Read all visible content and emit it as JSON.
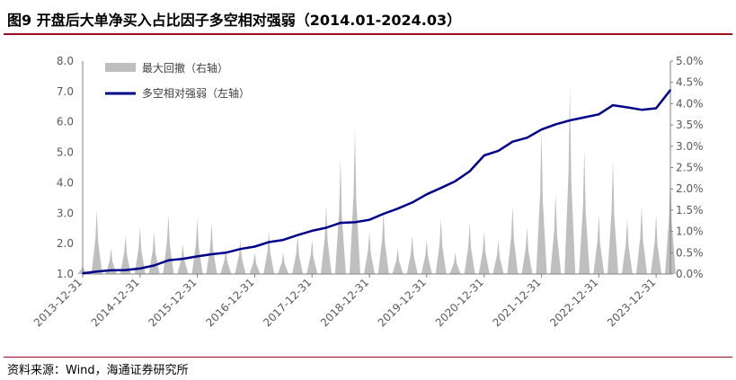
{
  "header": {
    "title": "图9   开盘后大单净买入占比因子多空相对强弱（2014.01-2024.03）"
  },
  "footer": {
    "source": "资料来源：Wind，海通证券研究所"
  },
  "colors": {
    "line": "#00008b",
    "area": "#bfbfbf",
    "axis": "#7f7f7f",
    "rule": "#9b0e1b"
  },
  "chart_data": {
    "type": "line",
    "title": "",
    "x_tick_labels": [
      "2013-12-31",
      "2014-12-31",
      "2015-12-31",
      "2016-12-31",
      "2017-12-31",
      "2018-12-31",
      "2019-12-31",
      "2020-12-31",
      "2021-12-31",
      "2022-12-31",
      "2023-12-31"
    ],
    "left_axis": {
      "ylim": [
        1.0,
        8.0
      ],
      "tick_labels": [
        "1.0",
        "2.0",
        "3.0",
        "4.0",
        "5.0",
        "6.0",
        "7.0",
        "8.0"
      ]
    },
    "right_axis": {
      "ylim": [
        0.0,
        5.0
      ],
      "tick_labels": [
        "0.0%",
        "0.5%",
        "1.0%",
        "1.5%",
        "2.0%",
        "2.5%",
        "3.0%",
        "3.5%",
        "4.0%",
        "4.5%",
        "5.0%"
      ]
    },
    "legend_position": "top-left",
    "series": [
      {
        "name": "最大回撤（右轴）",
        "kind": "area",
        "axis": "right",
        "unit": "%",
        "x": [
          "2013-12-31",
          "2014-03-31",
          "2014-06-30",
          "2014-09-30",
          "2014-12-31",
          "2015-03-31",
          "2015-06-30",
          "2015-09-30",
          "2015-12-31",
          "2016-03-31",
          "2016-06-30",
          "2016-09-30",
          "2016-12-31",
          "2017-03-31",
          "2017-06-30",
          "2017-09-30",
          "2017-12-31",
          "2018-03-31",
          "2018-06-30",
          "2018-09-30",
          "2018-12-31",
          "2019-03-31",
          "2019-06-30",
          "2019-09-30",
          "2019-12-31",
          "2020-03-31",
          "2020-06-30",
          "2020-09-30",
          "2020-12-31",
          "2021-03-31",
          "2021-06-30",
          "2021-09-30",
          "2021-12-31",
          "2022-03-31",
          "2022-06-30",
          "2022-09-30",
          "2022-12-31",
          "2023-03-31",
          "2023-06-30",
          "2023-09-30",
          "2023-12-31",
          "2024-03-31"
        ],
        "values": [
          0.2,
          1.5,
          0.6,
          0.9,
          1.1,
          1.0,
          1.4,
          0.7,
          1.3,
          1.2,
          0.6,
          0.8,
          0.5,
          1.0,
          0.5,
          0.9,
          0.8,
          1.6,
          2.7,
          3.4,
          1.0,
          1.5,
          0.6,
          0.9,
          0.8,
          1.3,
          0.5,
          1.2,
          1.0,
          0.8,
          1.6,
          1.1,
          3.4,
          1.9,
          4.4,
          2.9,
          1.4,
          2.7,
          1.3,
          1.6,
          1.4,
          2.4
        ]
      },
      {
        "name": "多空相对强弱（左轴）",
        "kind": "line",
        "axis": "left",
        "x": [
          "2013-12-31",
          "2014-03-31",
          "2014-06-30",
          "2014-09-30",
          "2014-12-31",
          "2015-03-31",
          "2015-06-30",
          "2015-09-30",
          "2015-12-31",
          "2016-03-31",
          "2016-06-30",
          "2016-09-30",
          "2016-12-31",
          "2017-03-31",
          "2017-06-30",
          "2017-09-30",
          "2017-12-31",
          "2018-03-31",
          "2018-06-30",
          "2018-09-30",
          "2018-12-31",
          "2019-03-31",
          "2019-06-30",
          "2019-09-30",
          "2019-12-31",
          "2020-03-31",
          "2020-06-30",
          "2020-09-30",
          "2020-12-31",
          "2021-03-31",
          "2021-06-30",
          "2021-09-30",
          "2021-12-31",
          "2022-03-31",
          "2022-06-30",
          "2022-09-30",
          "2022-12-31",
          "2023-03-31",
          "2023-06-30",
          "2023-09-30",
          "2023-12-31",
          "2024-03-31"
        ],
        "values": [
          1.02,
          1.08,
          1.12,
          1.13,
          1.18,
          1.28,
          1.45,
          1.5,
          1.58,
          1.65,
          1.7,
          1.82,
          1.9,
          2.05,
          2.12,
          2.28,
          2.42,
          2.52,
          2.68,
          2.7,
          2.78,
          2.98,
          3.15,
          3.35,
          3.62,
          3.83,
          4.05,
          4.38,
          4.9,
          5.05,
          5.35,
          5.48,
          5.75,
          5.92,
          6.05,
          6.15,
          6.25,
          6.55,
          6.48,
          6.4,
          6.45,
          7.05
        ]
      }
    ]
  }
}
